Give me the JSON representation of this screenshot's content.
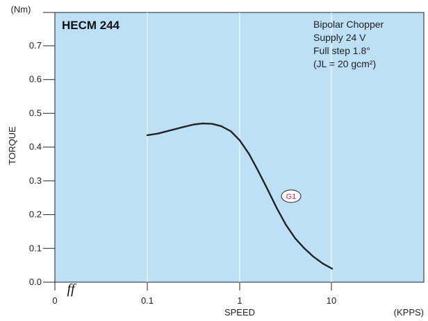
{
  "chart_data": {
    "type": "line",
    "title": "HECM 244",
    "notes": [
      "Bipolar Chopper",
      "Supply 24 V",
      "Full step 1.8°",
      "(JL = 20 gcm²)"
    ],
    "xlabel": "SPEED",
    "xunit": "(KPPS)",
    "ylabel": "TORQUE",
    "yunit": "(Nm)",
    "xscale": "log",
    "x_tick_labels": [
      "0",
      "0.1",
      "1",
      "10"
    ],
    "y_tick_labels": [
      "0.0",
      "0.1",
      "0.2",
      "0.3",
      "0.4",
      "0.5",
      "0.6",
      "0.7"
    ],
    "xlim": [
      0.1,
      10
    ],
    "ylim": [
      0,
      0.8
    ],
    "grid": true,
    "axis_break_mark": "ff",
    "series": [
      {
        "name": "G1",
        "x": [
          0.1,
          0.13,
          0.18,
          0.25,
          0.32,
          0.4,
          0.5,
          0.63,
          0.8,
          1.0,
          1.26,
          1.58,
          2.0,
          2.51,
          3.16,
          3.98,
          5.01,
          6.31,
          7.94,
          10.0
        ],
        "y": [
          0.435,
          0.44,
          0.45,
          0.46,
          0.467,
          0.47,
          0.469,
          0.462,
          0.447,
          0.42,
          0.38,
          0.33,
          0.275,
          0.22,
          0.17,
          0.13,
          0.1,
          0.075,
          0.055,
          0.04
        ]
      }
    ],
    "colors": {
      "plot_background": "#bde0f7",
      "line": "#222222",
      "grid": "#ffffff",
      "label_highlight": "#d62b4a"
    }
  }
}
